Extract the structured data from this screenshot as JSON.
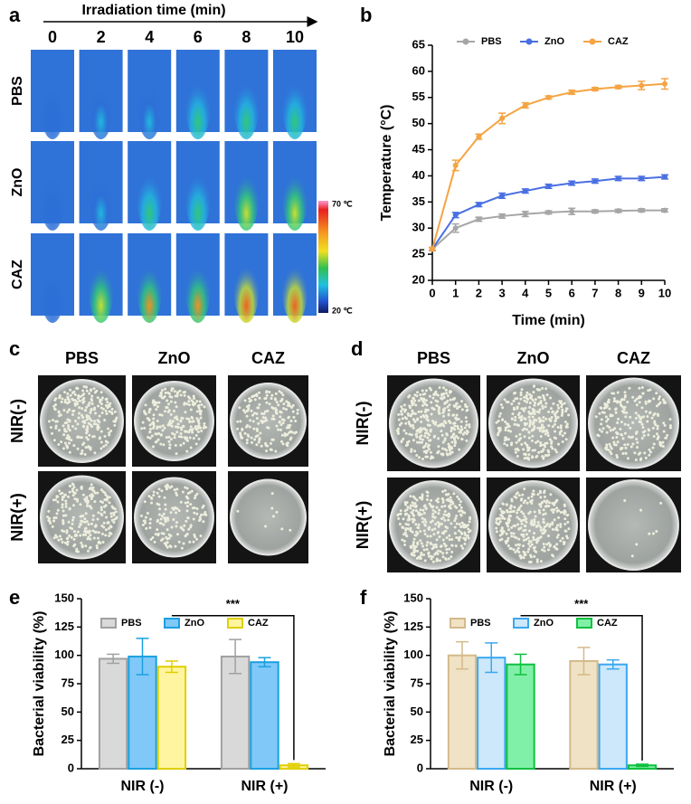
{
  "panel_labels": [
    "a",
    "b",
    "c",
    "d",
    "e",
    "f"
  ],
  "thermal": {
    "axis_label": "Irradiation time (min)",
    "times": [
      0,
      2,
      4,
      6,
      8,
      10
    ],
    "rows": [
      "PBS",
      "ZnO",
      "CAZ"
    ],
    "colorbar": {
      "lim": [
        20,
        70
      ],
      "ticks": [
        {
          "value": 20,
          "label": "20 ℃"
        },
        {
          "value": 70,
          "label": "70 ℃"
        }
      ]
    }
  },
  "plates_c": {
    "columns": [
      "PBS",
      "ZnO",
      "CAZ"
    ],
    "rows": [
      "NIR(-)",
      "NIR(+)"
    ]
  },
  "plates_d": {
    "columns": [
      "PBS",
      "ZnO",
      "CAZ"
    ],
    "rows": [
      "NIR(-)",
      "NIR(+)"
    ]
  },
  "chart_data": [
    {
      "type": "line",
      "xlabel": "Time (min)",
      "ylabel": "Temperature (°C)",
      "x": [
        0,
        1,
        2,
        3,
        4,
        5,
        6,
        7,
        8,
        9,
        10
      ],
      "xlim": [
        0,
        10
      ],
      "xticks": [
        0,
        1,
        2,
        3,
        4,
        5,
        6,
        7,
        8,
        9,
        10
      ],
      "ylim": [
        20,
        65
      ],
      "yticks": [
        20,
        25,
        30,
        35,
        40,
        45,
        50,
        55,
        60,
        65
      ],
      "series": [
        {
          "name": "PBS",
          "color": "#a6a6a6",
          "values": [
            26,
            30,
            31.7,
            32.3,
            32.7,
            33,
            33.2,
            33.2,
            33.3,
            33.4,
            33.4
          ],
          "errors": [
            0.3,
            0.8,
            0.4,
            0.4,
            0.5,
            0.3,
            0.6,
            0.3,
            0.3,
            0.3,
            0.3
          ]
        },
        {
          "name": "ZnO",
          "color": "#4a6fe3",
          "values": [
            26,
            32.5,
            34.5,
            36.2,
            37.1,
            38,
            38.6,
            39,
            39.5,
            39.5,
            39.8
          ],
          "errors": [
            0.3,
            0.5,
            0.4,
            0.5,
            0.4,
            0.4,
            0.4,
            0.4,
            0.4,
            0.4,
            0.4
          ]
        },
        {
          "name": "CAZ",
          "color": "#f5a443",
          "values": [
            26,
            42,
            47.5,
            51,
            53.5,
            55,
            56,
            56.6,
            57,
            57.3,
            57.6
          ],
          "errors": [
            0.3,
            1,
            0.5,
            1,
            0.5,
            0.3,
            0.4,
            0.3,
            0.3,
            0.8,
            1
          ]
        }
      ]
    },
    {
      "type": "bar",
      "ylabel": "Bacterial viability (%)",
      "categories": [
        "NIR (-)",
        "NIR (+)"
      ],
      "ylim": [
        0,
        150
      ],
      "yticks": [
        0,
        25,
        50,
        75,
        100,
        125,
        150
      ],
      "annotation": "***",
      "series": [
        {
          "name": "PBS",
          "color": "#d9d9d9",
          "edgecolor": "#a0a0a0",
          "values": [
            97,
            99
          ],
          "errors": [
            4,
            15
          ]
        },
        {
          "name": "ZnO",
          "color": "#7fc8f8",
          "edgecolor": "#1aa0e0",
          "values": [
            99,
            94
          ],
          "errors": [
            16,
            4
          ]
        },
        {
          "name": "CAZ",
          "color": "#fff5a0",
          "edgecolor": "#e0cf00",
          "values": [
            90,
            3
          ],
          "errors": [
            5,
            1.5
          ]
        }
      ]
    },
    {
      "type": "bar",
      "ylabel": "Bacterial viability (%)",
      "categories": [
        "NIR (-)",
        "NIR (+)"
      ],
      "ylim": [
        0,
        150
      ],
      "yticks": [
        0,
        25,
        50,
        75,
        100,
        125,
        150
      ],
      "annotation": "***",
      "series": [
        {
          "name": "PBS",
          "color": "#f0e2c4",
          "edgecolor": "#d4b98a",
          "values": [
            100,
            95
          ],
          "errors": [
            12,
            12
          ]
        },
        {
          "name": "ZnO",
          "color": "#cde8fa",
          "edgecolor": "#3aa8f0",
          "values": [
            98,
            92
          ],
          "errors": [
            13,
            4
          ]
        },
        {
          "name": "CAZ",
          "color": "#80f0a8",
          "edgecolor": "#10c040",
          "values": [
            92,
            3
          ],
          "errors": [
            9,
            1
          ]
        }
      ]
    }
  ]
}
